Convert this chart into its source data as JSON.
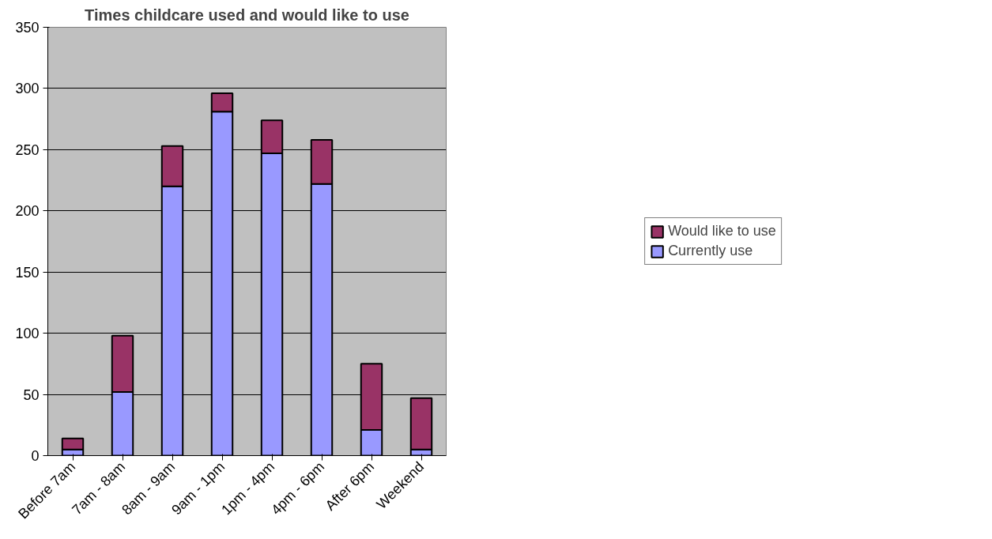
{
  "chart_data": {
    "type": "bar",
    "title": "Times childcare used and would like to use",
    "categories": [
      "Before 7am",
      "7am - 8am",
      "8am - 9am",
      "9am - 1pm",
      "1pm - 4pm",
      "4pm - 6pm",
      "After 6pm",
      "Weekend"
    ],
    "stacked": true,
    "series": [
      {
        "name": "Currently use",
        "color": "#9999ff",
        "values": [
          5,
          52,
          220,
          281,
          247,
          222,
          21,
          5
        ]
      },
      {
        "name": "Would like to use",
        "color": "#993366",
        "values": [
          9,
          46,
          33,
          15,
          27,
          36,
          54,
          42
        ]
      }
    ],
    "ylim": [
      0,
      350
    ],
    "yticks": [
      0,
      50,
      100,
      150,
      200,
      250,
      300,
      350
    ],
    "grid": "y",
    "legend": "right"
  }
}
